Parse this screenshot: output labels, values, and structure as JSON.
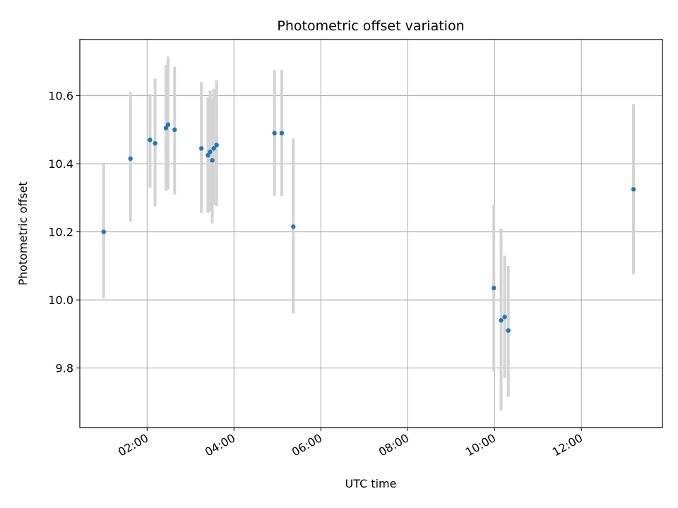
{
  "chart_data": {
    "type": "scatter",
    "title": "Photometric offset variation",
    "xlabel": "UTC time",
    "ylabel": "Photometric offset",
    "x_unit": "time of day (hours, UTC)",
    "xlim": [
      "00:27",
      "13:52"
    ],
    "ylim": [
      9.625,
      10.765
    ],
    "grid": true,
    "x_ticks": [
      {
        "value": "02:00",
        "label": "02:00"
      },
      {
        "value": "04:00",
        "label": "04:00"
      },
      {
        "value": "06:00",
        "label": "06:00"
      },
      {
        "value": "08:00",
        "label": "08:00"
      },
      {
        "value": "10:00",
        "label": "10:00"
      },
      {
        "value": "12:00",
        "label": "12:00"
      }
    ],
    "y_ticks": [
      {
        "value": 9.8,
        "label": "9.8"
      },
      {
        "value": 10.0,
        "label": "10.0"
      },
      {
        "value": 10.2,
        "label": "10.2"
      },
      {
        "value": 10.4,
        "label": "10.4"
      },
      {
        "value": 10.6,
        "label": "10.6"
      }
    ],
    "colors": {
      "point": "#1f77b4",
      "errorbar": "#d3d3d3",
      "grid": "#b0b0b0"
    },
    "points": [
      {
        "x": "01:00",
        "y": 10.2,
        "low": 10.005,
        "high": 10.4
      },
      {
        "x": "01:37",
        "y": 10.415,
        "low": 10.23,
        "high": 10.61
      },
      {
        "x": "02:04",
        "y": 10.47,
        "low": 10.33,
        "high": 10.605
      },
      {
        "x": "02:11",
        "y": 10.46,
        "low": 10.275,
        "high": 10.65
      },
      {
        "x": "02:26",
        "y": 10.505,
        "low": 10.32,
        "high": 10.69
      },
      {
        "x": "02:29",
        "y": 10.515,
        "low": 10.325,
        "high": 10.715
      },
      {
        "x": "02:38",
        "y": 10.5,
        "low": 10.31,
        "high": 10.685
      },
      {
        "x": "03:15",
        "y": 10.445,
        "low": 10.255,
        "high": 10.64
      },
      {
        "x": "03:24",
        "y": 10.425,
        "low": 10.255,
        "high": 10.595
      },
      {
        "x": "03:27",
        "y": 10.435,
        "low": 10.26,
        "high": 10.615
      },
      {
        "x": "03:30",
        "y": 10.41,
        "low": 10.225,
        "high": 10.59
      },
      {
        "x": "03:32",
        "y": 10.445,
        "low": 10.28,
        "high": 10.62
      },
      {
        "x": "03:36",
        "y": 10.455,
        "low": 10.275,
        "high": 10.645
      },
      {
        "x": "04:56",
        "y": 10.49,
        "low": 10.305,
        "high": 10.675
      },
      {
        "x": "05:06",
        "y": 10.49,
        "low": 10.305,
        "high": 10.675
      },
      {
        "x": "05:22",
        "y": 10.215,
        "low": 9.96,
        "high": 10.475
      },
      {
        "x": "09:59",
        "y": 10.035,
        "low": 9.79,
        "high": 10.28
      },
      {
        "x": "10:09",
        "y": 9.94,
        "low": 9.675,
        "high": 10.21
      },
      {
        "x": "10:14",
        "y": 9.95,
        "low": 9.77,
        "high": 10.13
      },
      {
        "x": "10:19",
        "y": 9.91,
        "low": 9.715,
        "high": 10.1
      },
      {
        "x": "13:12",
        "y": 10.325,
        "low": 10.075,
        "high": 10.575
      }
    ]
  }
}
